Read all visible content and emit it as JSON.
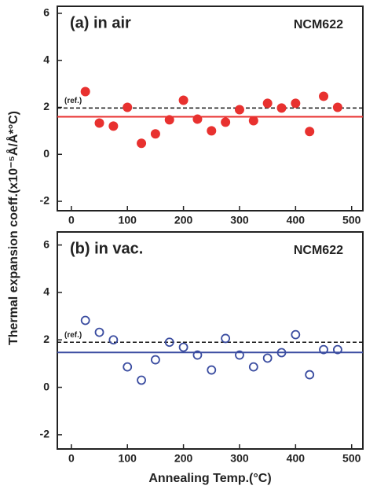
{
  "chart_data": [
    {
      "type": "scatter",
      "title": "(a) in air",
      "y_label": "Thermal expansion coeff.(x10⁻⁵Å/Å*°C)",
      "x": [
        25,
        50,
        75,
        100,
        125,
        150,
        175,
        200,
        225,
        250,
        275,
        300,
        325,
        350,
        375,
        400,
        425,
        450,
        475
      ],
      "series": [
        {
          "name": "NCM622",
          "color": "#e8312f",
          "marker": "filled",
          "values": [
            2.67,
            1.33,
            1.2,
            2.0,
            0.47,
            0.87,
            1.47,
            2.3,
            1.5,
            1.0,
            1.37,
            1.9,
            1.43,
            2.17,
            1.97,
            2.17,
            0.97,
            2.47,
            2.0
          ]
        }
      ],
      "reference_line": {
        "value": 1.97,
        "label": "(ref.)"
      },
      "mean_line": 1.6,
      "xlim": [
        -25,
        520
      ],
      "ylim": [
        -2.4,
        6.3
      ],
      "xticks": [
        0,
        100,
        200,
        300,
        400,
        500
      ],
      "yticks": [
        -2,
        0,
        2,
        4,
        6
      ]
    },
    {
      "type": "scatter",
      "title": "(b) in vac.",
      "x_label": "Annealing Temp.(°C)",
      "x": [
        25,
        50,
        75,
        100,
        125,
        150,
        175,
        200,
        225,
        250,
        275,
        300,
        325,
        350,
        375,
        400,
        425,
        450,
        475
      ],
      "series": [
        {
          "name": "NCM622",
          "color": "#3a4ca0",
          "marker": "open",
          "values": [
            2.82,
            2.32,
            2.0,
            0.86,
            0.3,
            1.16,
            1.9,
            1.69,
            1.36,
            0.73,
            2.06,
            1.36,
            0.86,
            1.23,
            1.46,
            2.22,
            0.53,
            1.59,
            1.59
          ]
        }
      ],
      "reference_line": {
        "value": 1.9,
        "label": "(ref.)"
      },
      "mean_line": 1.47,
      "xlim": [
        -25,
        520
      ],
      "ylim": [
        -2.6,
        6.55
      ],
      "xticks": [
        0,
        100,
        200,
        300,
        400,
        500
      ],
      "yticks": [
        -2,
        0,
        2,
        4,
        6
      ]
    }
  ]
}
